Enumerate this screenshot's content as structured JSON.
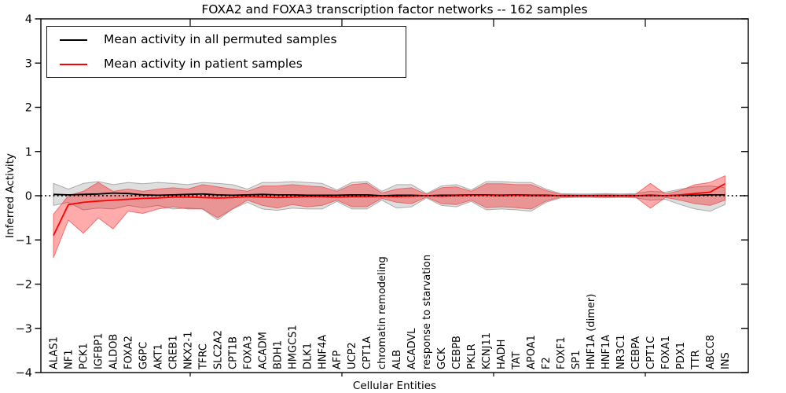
{
  "title": "FOXA2 and FOXA3 transcription factor networks -- 162 samples",
  "legend": {
    "items": [
      {
        "label": "Mean activity in all permuted samples",
        "color": "#000000"
      },
      {
        "label": "Mean activity in patient samples",
        "color": "#ff0000"
      }
    ]
  },
  "colors": {
    "permuted_line": "#000000",
    "patient_line": "#ff0000",
    "permuted_band_fill": "rgba(0,0,0,0.13)",
    "permuted_band_edge": "rgba(90,90,90,0.45)",
    "patient_band_fill": "rgba(255,0,0,0.33)",
    "patient_band_edge": "rgba(235,80,80,0.75)",
    "zero_line": "#000000",
    "frame": "#000000"
  },
  "chart_data": {
    "type": "line",
    "title": "FOXA2 and FOXA3 transcription factor networks -- 162 samples",
    "xlabel": "Cellular Entities",
    "ylabel": "Inferred Activity",
    "ylim": [
      -4,
      4
    ],
    "yticks": [
      -4,
      -3,
      -2,
      -1,
      0,
      1,
      2,
      3,
      4
    ],
    "grid": false,
    "legend_position": "upper left",
    "zero_reference_line": 0,
    "categories": [
      "ALAS1",
      "NF1",
      "PCK1",
      "IGFBP1",
      "ALDOB",
      "FOXA2",
      "G6PC",
      "AKT1",
      "CREB1",
      "NKX2-1",
      "TFRC",
      "SLC2A2",
      "CPT1B",
      "FOXA3",
      "ACADM",
      "BDH1",
      "HMGCS1",
      "DLK1",
      "HNF4A",
      "AFP",
      "UCP2",
      "CPT1A",
      "chromatin remodeling",
      "ALB",
      "ACADVL",
      "response to starvation",
      "GCK",
      "CEBPB",
      "PKLR",
      "KCNJ11",
      "HADH",
      "TAT",
      "APOA1",
      "F2",
      "FOXF1",
      "SP1",
      "HNF1A (dimer)",
      "HNF1A",
      "NR3C1",
      "CEBPA",
      "CPT1C",
      "FOXA1",
      "PDX1",
      "TTR",
      "ABCC8",
      "INS"
    ],
    "series": [
      {
        "name": "Mean activity in all permuted samples",
        "color": "#000000",
        "values": [
          0.03,
          0.02,
          0.03,
          0.04,
          0.06,
          0.05,
          0.02,
          0.01,
          0.02,
          0.03,
          0.04,
          0.02,
          0.01,
          0.02,
          0.03,
          0.02,
          0.02,
          0.01,
          0.01,
          0.01,
          0.02,
          0.02,
          0.0,
          0.01,
          0.01,
          0.0,
          0.01,
          0.01,
          0.02,
          0.02,
          0.01,
          0.02,
          0.01,
          0.01,
          0.0,
          0.0,
          0.0,
          0.0,
          0.0,
          0.0,
          0.01,
          0.0,
          0.01,
          0.01,
          0.02,
          0.02
        ]
      },
      {
        "name": "Mean activity in patient samples",
        "color": "#ff0000",
        "values": [
          -0.9,
          -0.2,
          -0.15,
          -0.12,
          -0.1,
          -0.08,
          -0.06,
          -0.05,
          -0.03,
          -0.03,
          -0.04,
          -0.05,
          -0.04,
          -0.02,
          -0.03,
          -0.04,
          -0.03,
          -0.02,
          -0.02,
          -0.03,
          -0.02,
          -0.02,
          -0.01,
          -0.02,
          -0.01,
          0.0,
          -0.01,
          0.0,
          0.01,
          0.01,
          0.0,
          0.01,
          0.0,
          0.0,
          0.0,
          0.0,
          0.0,
          0.0,
          0.0,
          0.0,
          0.0,
          0.0,
          0.02,
          0.05,
          0.08,
          0.27
        ]
      }
    ],
    "bands": [
      {
        "name": "permuted-samples-range",
        "fill": "rgba(0,0,0,0.13)",
        "edge": "rgba(90,90,90,0.45)",
        "upper": [
          0.28,
          0.15,
          0.28,
          0.32,
          0.25,
          0.3,
          0.27,
          0.3,
          0.28,
          0.25,
          0.3,
          0.28,
          0.25,
          0.15,
          0.3,
          0.3,
          0.32,
          0.3,
          0.28,
          0.13,
          0.3,
          0.32,
          0.1,
          0.25,
          0.25,
          0.05,
          0.22,
          0.25,
          0.13,
          0.32,
          0.32,
          0.3,
          0.3,
          0.15,
          0.05,
          0.04,
          0.04,
          0.05,
          0.04,
          0.05,
          0.1,
          0.08,
          0.15,
          0.2,
          0.22,
          0.18
        ],
        "lower": [
          -0.22,
          -0.15,
          -0.32,
          -0.28,
          -0.3,
          -0.22,
          -0.27,
          -0.22,
          -0.3,
          -0.28,
          -0.3,
          -0.55,
          -0.3,
          -0.15,
          -0.3,
          -0.33,
          -0.28,
          -0.3,
          -0.3,
          -0.13,
          -0.3,
          -0.3,
          -0.1,
          -0.28,
          -0.25,
          -0.05,
          -0.22,
          -0.25,
          -0.13,
          -0.32,
          -0.3,
          -0.32,
          -0.35,
          -0.15,
          -0.05,
          -0.04,
          -0.04,
          -0.05,
          -0.04,
          -0.05,
          -0.1,
          -0.08,
          -0.2,
          -0.3,
          -0.35,
          -0.2
        ]
      },
      {
        "name": "patient-samples-range",
        "fill": "rgba(255,0,0,0.33)",
        "edge": "rgba(235,80,80,0.75)",
        "upper": [
          -0.42,
          0.0,
          0.1,
          0.3,
          0.1,
          0.15,
          0.1,
          0.15,
          0.18,
          0.15,
          0.25,
          0.2,
          0.15,
          0.1,
          0.22,
          0.22,
          0.25,
          0.22,
          0.2,
          0.1,
          0.25,
          0.28,
          0.06,
          0.15,
          0.18,
          0.03,
          0.18,
          0.2,
          0.1,
          0.27,
          0.27,
          0.25,
          0.25,
          0.12,
          0.03,
          0.02,
          0.02,
          0.03,
          0.02,
          0.03,
          0.28,
          0.04,
          0.12,
          0.25,
          0.3,
          0.45
        ],
        "lower": [
          -1.4,
          -0.55,
          -0.85,
          -0.5,
          -0.75,
          -0.35,
          -0.4,
          -0.3,
          -0.25,
          -0.3,
          -0.3,
          -0.5,
          -0.3,
          -0.1,
          -0.22,
          -0.28,
          -0.2,
          -0.25,
          -0.22,
          -0.1,
          -0.25,
          -0.25,
          -0.06,
          -0.15,
          -0.18,
          -0.03,
          -0.18,
          -0.2,
          -0.1,
          -0.27,
          -0.25,
          -0.27,
          -0.3,
          -0.12,
          -0.03,
          -0.02,
          -0.02,
          -0.03,
          -0.02,
          -0.03,
          -0.28,
          -0.04,
          -0.1,
          -0.18,
          -0.22,
          -0.1
        ]
      }
    ]
  }
}
